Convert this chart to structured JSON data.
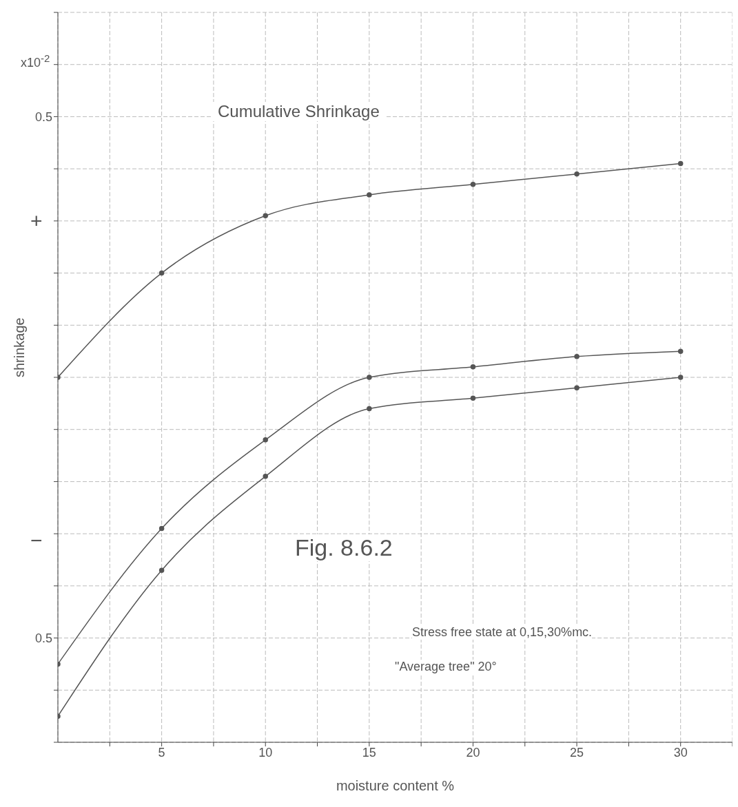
{
  "chart_data": {
    "type": "line",
    "title": "Cumulative Shrinkage",
    "xlabel": "moisture content %",
    "ylabel": "shrinkage",
    "annotations": [
      "x10$^{-2}$",
      "+",
      "−",
      "Fig. 8.6.2",
      "Stress free state at 0,15,30%mc.",
      "\"Average tree\" 20°"
    ],
    "x": [
      0,
      5,
      10,
      15,
      20,
      25,
      30
    ],
    "series": [
      {
        "color": "#555555",
        "values": [
          0,
          0.2,
          0.31,
          0.35,
          0.37,
          0.39,
          0.41
        ]
      },
      {
        "color": "#555555",
        "values": [
          -0.55,
          -0.29,
          -0.12,
          0,
          0.02,
          0.04,
          0.05
        ]
      },
      {
        "color": "#555555",
        "values": [
          -0.65,
          -0.37,
          -0.19,
          -0.06,
          -0.04,
          -0.02,
          0
        ]
      }
    ],
    "xlim": [
      0,
      32.5
    ],
    "xticks": [
      {
        "value": 2.5,
        "label": null
      },
      5,
      {
        "value": 7.5,
        "label": null
      },
      10,
      {
        "value": 12.5,
        "label": null
      },
      15,
      {
        "value": 17.5,
        "label": null
      },
      20,
      {
        "value": 22.5,
        "label": null
      },
      25,
      {
        "value": 27.5,
        "label": null
      },
      30,
      {
        "value": 32.5,
        "label": null
      }
    ],
    "ylim": [
      -0.7,
      0.7
    ],
    "yticks": [
      {
        "value": -0.7,
        "label": null
      },
      {
        "value": -0.6,
        "label": null
      },
      {
        "value": -0.5,
        "label": "0.5"
      },
      {
        "value": -0.4,
        "label": null
      },
      {
        "value": -0.3,
        "label": null
      },
      {
        "value": -0.2,
        "label": null
      },
      {
        "value": -0.1,
        "label": null
      },
      {
        "value": 0,
        "label": null
      },
      {
        "value": 0.1,
        "label": null
      },
      {
        "value": 0.2,
        "label": null
      },
      {
        "value": 0.3,
        "label": null
      },
      {
        "value": 0.4,
        "label": null
      },
      0.5,
      {
        "value": 0.6,
        "label": null
      },
      {
        "value": 0.7,
        "label": null
      }
    ],
    "grid": true,
    "legend": false,
    "marker": "circle",
    "line_style": "solid"
  }
}
